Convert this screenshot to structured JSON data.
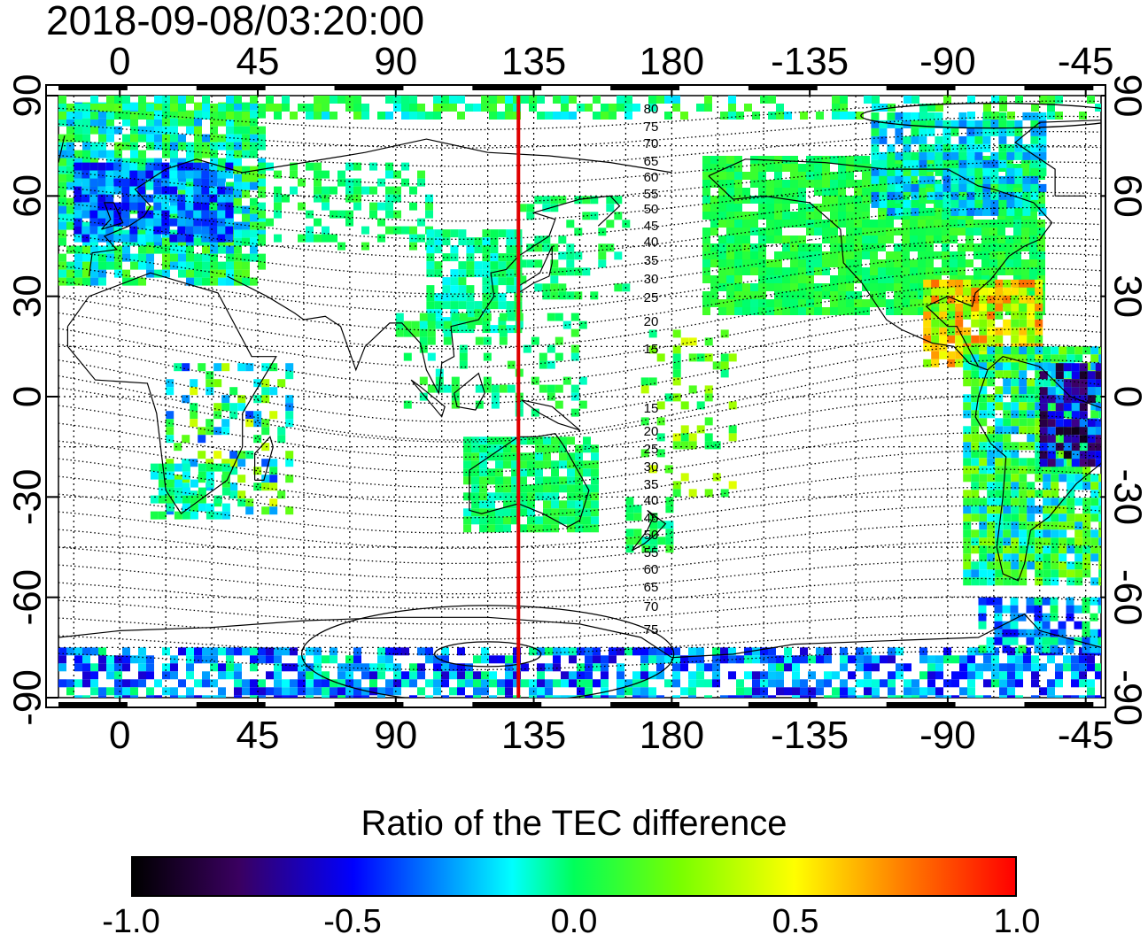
{
  "title": "2018-09-08/03:20:00",
  "map": {
    "lon_ticks_top": [
      "0",
      "45",
      "90",
      "135",
      "180",
      "-135",
      "-90",
      "-45"
    ],
    "lon_ticks_bottom": [
      "0",
      "45",
      "90",
      "135",
      "180",
      "-135",
      "-90",
      "-45"
    ],
    "lat_ticks_left": [
      "90",
      "60",
      "30",
      "0",
      "-30",
      "-60",
      "-90"
    ],
    "lat_ticks_right": [
      "90",
      "60",
      "30",
      "0",
      "-30",
      "-60",
      "-90"
    ],
    "magnetic_latitude_labels_north": [
      "80",
      "75",
      "70",
      "65",
      "60",
      "55",
      "50",
      "45",
      "40",
      "35",
      "30",
      "25",
      "20",
      "15"
    ],
    "magnetic_latitude_labels_south": [
      "15",
      "20",
      "25",
      "30",
      "35",
      "40",
      "45",
      "50",
      "55",
      "60",
      "65",
      "70",
      "75"
    ],
    "terminator_longitude": 130,
    "terminator_color": "#e00000"
  },
  "colorbar": {
    "title": "Ratio of the TEC difference",
    "ticks": [
      "-1.0",
      "-0.5",
      "0.0",
      "0.5",
      "1.0"
    ],
    "min": -1.0,
    "max": 1.0,
    "stops": [
      "#000000",
      "#3a0060",
      "#0000ff",
      "#00ffff",
      "#00ff00",
      "#ffff00",
      "#ff8000",
      "#ff0000"
    ]
  }
}
